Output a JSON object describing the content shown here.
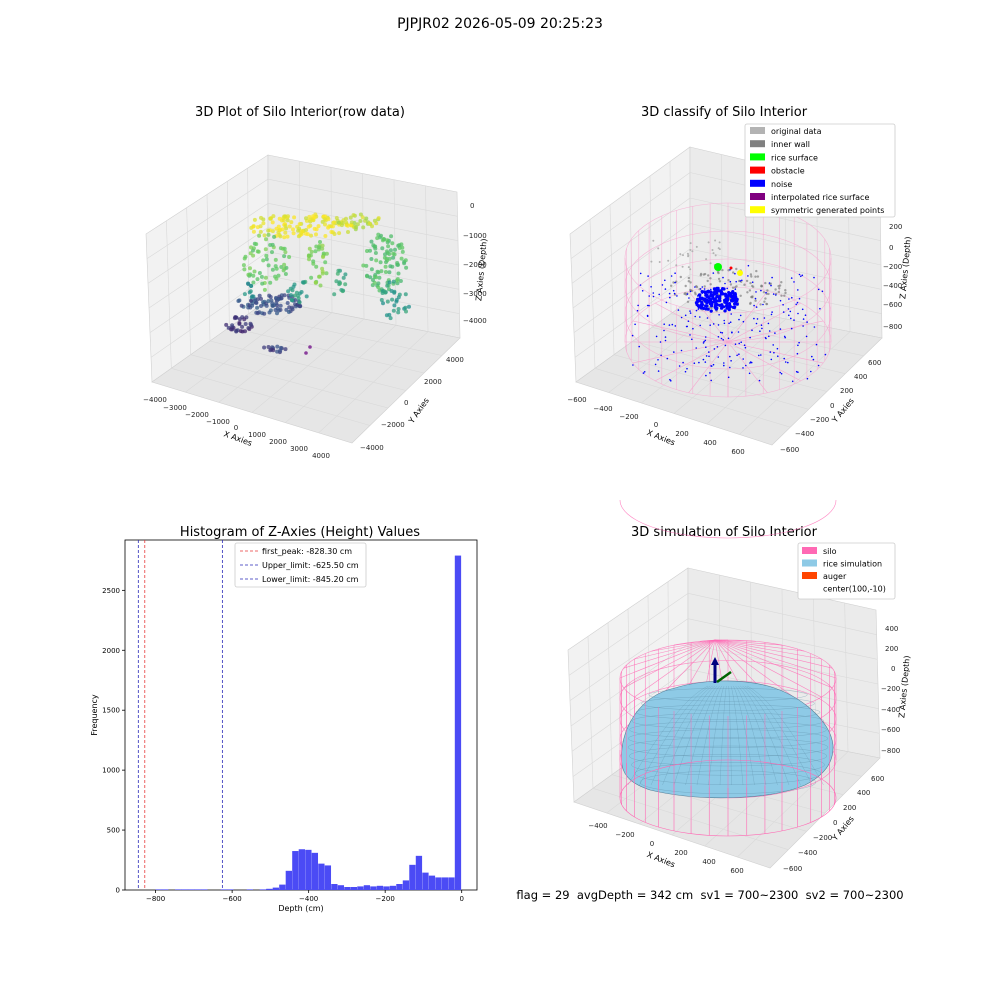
{
  "figure": {
    "suptitle": "PJPJR02 2026-05-09 20:25:23",
    "footer": "flag = 29  avgDepth = 342 cm  sv1 = 700~2300  sv2 = 700~2300"
  },
  "colors": {
    "pane_face": "#f2f2f2",
    "pane_side": "#ebebeb",
    "grid": "#d9d9d9",
    "hist_bar": "#4b4bf5",
    "first_peak": "#e83a3a",
    "limit_line": "#2a2ab8",
    "silo_pink": "#ff69b4",
    "silo_pink_light": "#f6a6cf",
    "rice_sim": "#8ecae6",
    "auger": "#ff4500",
    "noise": "#0000ff",
    "rice_surface": "#00ff00",
    "obstacle": "#ff0000",
    "symmetric": "#ffff00",
    "interp": "#800080",
    "original": "#b3b3b3",
    "inner_wall": "#808080"
  },
  "panels": {
    "raw": {
      "title": "3D Plot of Silo Interior(row data)",
      "xlabel": "X Axies",
      "ylabel": "Y Axies",
      "zlabel": "Z Axies (Depth)",
      "xticks": [
        "−4000",
        "−3000",
        "−2000",
        "−1000",
        "0",
        "1000",
        "2000",
        "3000",
        "4000"
      ],
      "yticks": [
        "4000",
        "2000",
        "0",
        "−2000",
        "−4000"
      ],
      "zticks": [
        "0",
        "−1000",
        "−2000",
        "−3000",
        "−4000"
      ]
    },
    "classify": {
      "title": "3D classify of Silo Interior",
      "xlabel": "X Axies",
      "ylabel": "Y Axies",
      "zlabel": "Z Axies (Depth)",
      "xticks": [
        "−600",
        "−400",
        "−200",
        "0",
        "200",
        "400",
        "600"
      ],
      "yticks": [
        "600",
        "400",
        "200",
        "0",
        "−200",
        "−400",
        "−600"
      ],
      "zticks": [
        "200",
        "0",
        "−200",
        "−400",
        "−600",
        "−800"
      ],
      "legend": [
        {
          "label": "original data",
          "color": "#b3b3b3"
        },
        {
          "label": "inner wall",
          "color": "#808080"
        },
        {
          "label": "rice surface",
          "color": "#00ff00"
        },
        {
          "label": "obstacle",
          "color": "#ff0000"
        },
        {
          "label": "noise",
          "color": "#0000ff"
        },
        {
          "label": "interpolated rice surface",
          "color": "#800080"
        },
        {
          "label": "symmetric generated points",
          "color": "#ffff00"
        }
      ]
    },
    "sim": {
      "title": "3D simulation of Silo Interior",
      "xlabel": "X Axies",
      "ylabel": "Y Axies",
      "zlabel": "Z Axies (Depth)",
      "xticks": [
        "−400",
        "−200",
        "0",
        "200",
        "400",
        "600"
      ],
      "yticks": [
        "600",
        "400",
        "200",
        "0",
        "−200",
        "−400",
        "−600"
      ],
      "zticks": [
        "400",
        "200",
        "0",
        "−200",
        "−400",
        "−600",
        "−800"
      ],
      "legend": [
        {
          "label": "silo",
          "color": "#ff69b4"
        },
        {
          "label": "rice simulation",
          "color": "#8ecae6"
        },
        {
          "label": "auger",
          "color": "#ff4500"
        },
        {
          "label": "center(100,-10)",
          "color": ""
        }
      ]
    }
  },
  "chart_data": [
    {
      "type": "scatter",
      "title": "3D Plot of Silo Interior(row data)",
      "xlabel": "X Axies",
      "ylabel": "Y Axies",
      "zlabel": "Z Axies (Depth)",
      "xlim": [
        -4000,
        4000
      ],
      "ylim": [
        -4000,
        4000
      ],
      "zlim": [
        -4500,
        0
      ],
      "colormap": "viridis",
      "grid": true
    },
    {
      "type": "scatter",
      "title": "3D classify of Silo Interior",
      "xlabel": "X Axies",
      "ylabel": "Y Axies",
      "zlabel": "Z Axies (Depth)",
      "xlim": [
        -600,
        600
      ],
      "ylim": [
        -600,
        600
      ],
      "zlim": [
        -900,
        200
      ],
      "series": [
        {
          "name": "original data"
        },
        {
          "name": "inner wall"
        },
        {
          "name": "rice surface"
        },
        {
          "name": "obstacle"
        },
        {
          "name": "noise"
        },
        {
          "name": "interpolated rice surface"
        },
        {
          "name": "symmetric generated points"
        }
      ],
      "legend": "top-right",
      "grid": true
    },
    {
      "type": "bar",
      "title": "Histogram of Z-Axies (Height) Values",
      "xlabel": "Depth (cm)",
      "ylabel": "Frequency",
      "xlim": [
        -880,
        40
      ],
      "ylim": [
        0,
        2920
      ],
      "xticks": [
        -800,
        -600,
        -400,
        -200,
        0
      ],
      "yticks": [
        0,
        500,
        1000,
        1500,
        2000,
        2500
      ],
      "bin_width": 17,
      "bins": [
        {
          "x": -800,
          "value": 5
        },
        {
          "x": -783,
          "value": 5
        },
        {
          "x": -749,
          "value": 5
        },
        {
          "x": -732,
          "value": 5
        },
        {
          "x": -715,
          "value": 5
        },
        {
          "x": -698,
          "value": 5
        },
        {
          "x": -681,
          "value": 5
        },
        {
          "x": -630,
          "value": 5
        },
        {
          "x": -613,
          "value": 5
        },
        {
          "x": -562,
          "value": 5
        },
        {
          "x": -528,
          "value": 5
        },
        {
          "x": -511,
          "value": 10
        },
        {
          "x": -494,
          "value": 20
        },
        {
          "x": -477,
          "value": 45
        },
        {
          "x": -460,
          "value": 160
        },
        {
          "x": -443,
          "value": 325
        },
        {
          "x": -426,
          "value": 340
        },
        {
          "x": -409,
          "value": 335
        },
        {
          "x": -392,
          "value": 310
        },
        {
          "x": -375,
          "value": 220
        },
        {
          "x": -358,
          "value": 205
        },
        {
          "x": -341,
          "value": 50
        },
        {
          "x": -324,
          "value": 40
        },
        {
          "x": -307,
          "value": 25
        },
        {
          "x": -290,
          "value": 25
        },
        {
          "x": -273,
          "value": 30
        },
        {
          "x": -256,
          "value": 40
        },
        {
          "x": -239,
          "value": 30
        },
        {
          "x": -222,
          "value": 35
        },
        {
          "x": -205,
          "value": 30
        },
        {
          "x": -188,
          "value": 35
        },
        {
          "x": -171,
          "value": 50
        },
        {
          "x": -154,
          "value": 80
        },
        {
          "x": -137,
          "value": 210
        },
        {
          "x": -120,
          "value": 285
        },
        {
          "x": -103,
          "value": 145
        },
        {
          "x": -86,
          "value": 120
        },
        {
          "x": -69,
          "value": 105
        },
        {
          "x": -52,
          "value": 105
        },
        {
          "x": -35,
          "value": 105
        },
        {
          "x": -18,
          "value": 2790
        }
      ],
      "vlines": [
        {
          "name": "first_peak: -828.30 cm",
          "x": -828.3,
          "color": "#e83a3a"
        },
        {
          "name": "Upper_limit: -625.50 cm",
          "x": -625.5,
          "color": "#2a2ab8"
        },
        {
          "name": "Lower_limit: -845.20 cm",
          "x": -845.2,
          "color": "#2a2ab8"
        }
      ],
      "legend": "top-center",
      "grid": false
    },
    {
      "type": "area",
      "title": "3D simulation of Silo Interior",
      "xlabel": "X Axies",
      "ylabel": "Y Axies",
      "zlabel": "Z Axies (Depth)",
      "xlim": [
        -500,
        700
      ],
      "ylim": [
        -700,
        700
      ],
      "zlim": [
        -900,
        450
      ],
      "series": [
        {
          "name": "silo"
        },
        {
          "name": "rice simulation"
        },
        {
          "name": "auger"
        },
        {
          "name": "center(100,-10)"
        }
      ],
      "legend": "top-right",
      "grid": true
    }
  ],
  "histogram": {
    "title": "Histogram of Z-Axies (Height) Values",
    "xlabel": "Depth (cm)",
    "ylabel": "Frequency"
  }
}
